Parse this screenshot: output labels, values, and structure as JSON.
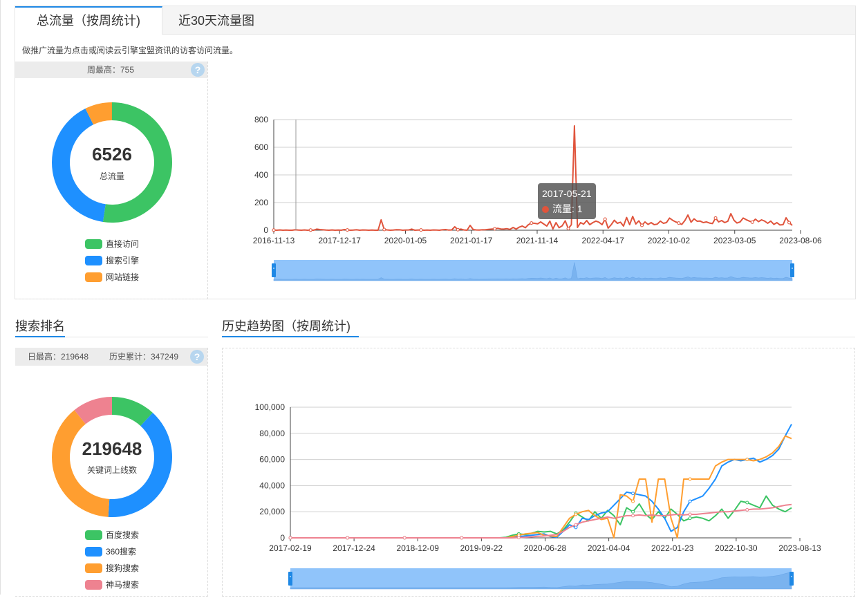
{
  "tabs": [
    {
      "label": "总流量（按周统计)",
      "active": true
    },
    {
      "label": "近30天流量图",
      "active": false
    }
  ],
  "description": "做推广流量为点击或阅读云引擎宝盟资讯的访客访问流量。",
  "traffic_stats": {
    "header": "周最高：755",
    "total_value": "6526",
    "total_label": "总流量",
    "legend": [
      {
        "label": "直接访问",
        "color": "#3cc464"
      },
      {
        "label": "搜索引擎",
        "color": "#1e90ff"
      },
      {
        "label": "网站链接",
        "color": "#ff9e30"
      }
    ]
  },
  "tooltip": {
    "date": "2017-05-21",
    "series": "流量",
    "value": "1"
  },
  "search_section_title": "搜索排名",
  "history_section_title": "历史趋势图（按周统计)",
  "search_stats": {
    "header_daily": "日最高：219648",
    "header_total": "历史累计：347249",
    "total_value": "219648",
    "total_label": "关键词上线数",
    "legend": [
      {
        "label": "百度搜索",
        "color": "#3cc464"
      },
      {
        "label": "360搜索",
        "color": "#1e90ff"
      },
      {
        "label": "搜狗搜索",
        "color": "#ff9e30"
      },
      {
        "label": "神马搜索",
        "color": "#ee8290"
      }
    ]
  },
  "icons": {
    "help": "?"
  },
  "chart_data": [
    {
      "type": "pie",
      "title": "",
      "center_value": 6526,
      "center_label": "总流量",
      "categories": [
        "直接访问",
        "搜索引擎",
        "网站链接"
      ],
      "values": [
        3420,
        2630,
        476
      ],
      "colors": [
        "#3cc464",
        "#1e90ff",
        "#ff9e30"
      ]
    },
    {
      "type": "line",
      "title": "",
      "xlabel": "",
      "ylabel": "",
      "ylim": [
        0,
        800
      ],
      "yticks": [
        0,
        200,
        400,
        600,
        800
      ],
      "x_tick_labels": [
        "2016-11-13",
        "2017-12-17",
        "2020-01-05",
        "2021-01-17",
        "2021-11-14",
        "2022-04-17",
        "2022-10-02",
        "2023-03-05",
        "2023-08-06"
      ],
      "grid": true,
      "legend": "none",
      "series": [
        {
          "color": "#e0543c",
          "values": [
            1,
            0,
            2,
            0,
            1,
            0,
            0,
            3,
            1,
            0,
            2,
            0,
            1,
            0,
            8,
            5,
            3,
            1,
            0,
            2,
            0,
            1,
            0,
            5,
            2,
            0,
            1,
            3,
            0,
            2,
            1,
            0,
            1,
            0,
            0,
            75,
            5,
            2,
            0,
            1,
            4,
            3,
            0,
            1,
            2,
            8,
            0,
            1,
            2,
            0,
            1,
            0,
            2,
            1,
            0,
            3,
            5,
            1,
            2,
            25,
            4,
            8,
            2,
            0,
            35,
            5,
            2,
            1,
            3,
            4,
            6,
            8,
            10,
            14,
            9,
            8,
            11,
            6,
            20,
            8,
            22,
            30,
            18,
            40,
            52,
            50,
            46,
            60,
            45,
            30,
            66,
            9,
            55,
            18,
            32,
            68,
            12,
            40,
            755,
            20,
            55,
            44,
            70,
            40,
            55,
            66,
            58,
            40,
            80,
            15,
            40,
            72,
            50,
            58,
            30,
            92,
            40,
            100,
            45,
            68,
            35,
            60,
            42,
            55,
            40,
            44,
            66,
            50,
            55,
            88,
            72,
            60,
            52,
            42,
            70,
            110,
            58,
            82,
            65,
            66,
            55,
            60,
            52,
            48,
            88,
            60,
            70,
            55,
            65,
            120,
            72,
            52,
            60,
            88,
            76,
            66,
            58,
            80,
            62,
            75,
            66,
            50,
            66,
            42,
            55,
            38,
            40,
            90,
            55,
            35
          ]
        }
      ]
    },
    {
      "type": "pie",
      "title": "",
      "center_value": 219648,
      "center_label": "关键词上线数",
      "categories": [
        "百度搜索",
        "360搜索",
        "搜狗搜索",
        "神马搜索"
      ],
      "values": [
        26000,
        86000,
        84000,
        23648
      ],
      "colors": [
        "#3cc464",
        "#1e90ff",
        "#ff9e30",
        "#ee8290"
      ]
    },
    {
      "type": "line",
      "title": "",
      "xlabel": "",
      "ylabel": "",
      "ylim": [
        0,
        100000
      ],
      "yticks": [
        0,
        20000,
        40000,
        60000,
        80000,
        100000
      ],
      "x_tick_labels": [
        "2017-02-19",
        "2017-12-24",
        "2018-12-09",
        "2019-09-22",
        "2020-06-28",
        "2021-04-04",
        "2022-01-23",
        "2022-10-30",
        "2023-08-13"
      ],
      "grid": true,
      "legend": "none",
      "series": [
        {
          "name": "百度搜索",
          "color": "#3cc464",
          "values": [
            0,
            0,
            0,
            0,
            0,
            0,
            0,
            0,
            0,
            0,
            0,
            0,
            0,
            0,
            0,
            0,
            0,
            0,
            0,
            0,
            0,
            0,
            0,
            0,
            0,
            0,
            0,
            0,
            0,
            0,
            0,
            0,
            0,
            0,
            500,
            2000,
            3000,
            2500,
            3500,
            5000,
            4500,
            5000,
            3000,
            6000,
            12000,
            19000,
            16000,
            13000,
            20000,
            15000,
            21000,
            17000,
            10000,
            23000,
            20000,
            26000,
            18000,
            14000,
            20000,
            15000,
            22000,
            18000,
            13000,
            15000,
            16000,
            15000,
            13000,
            17000,
            22000,
            15000,
            21000,
            28000,
            27000,
            25000,
            23000,
            32000,
            25000,
            22000,
            20000,
            23000
          ]
        },
        {
          "name": "360搜索",
          "color": "#1e90ff",
          "values": [
            0,
            0,
            0,
            0,
            0,
            0,
            0,
            0,
            0,
            0,
            0,
            0,
            0,
            0,
            0,
            0,
            0,
            0,
            0,
            0,
            0,
            0,
            0,
            0,
            0,
            0,
            0,
            0,
            0,
            0,
            0,
            0,
            0,
            0,
            0,
            500,
            1000,
            1500,
            2000,
            2500,
            3000,
            1000,
            500,
            5000,
            10000,
            8000,
            15000,
            14000,
            17000,
            19000,
            20000,
            25000,
            30000,
            35000,
            34000,
            33000,
            32000,
            28000,
            22000,
            15000,
            5000,
            8000,
            20000,
            28000,
            30000,
            32000,
            38000,
            45000,
            55000,
            58000,
            60000,
            59000,
            60000,
            61000,
            58000,
            60000,
            63000,
            68000,
            78000,
            87000
          ]
        },
        {
          "name": "搜狗搜索",
          "color": "#ff9e30",
          "values": [
            0,
            0,
            0,
            0,
            0,
            0,
            0,
            0,
            0,
            0,
            0,
            0,
            0,
            0,
            0,
            0,
            0,
            0,
            0,
            0,
            0,
            0,
            0,
            0,
            0,
            0,
            0,
            0,
            0,
            0,
            0,
            0,
            0,
            0,
            0,
            1000,
            2000,
            3000,
            3500,
            4000,
            2000,
            1500,
            1000,
            8000,
            15000,
            18000,
            20000,
            21000,
            17000,
            14000,
            15000,
            0,
            33000,
            32000,
            28000,
            45000,
            45000,
            12000,
            45000,
            45000,
            15000,
            0,
            45000,
            45000,
            45000,
            45000,
            45000,
            55000,
            58000,
            60000,
            60000,
            60000,
            60000,
            59000,
            60000,
            62000,
            65000,
            70000,
            78000,
            76000
          ]
        },
        {
          "name": "神马搜索",
          "color": "#ee8290",
          "values": [
            0,
            0,
            0,
            0,
            0,
            0,
            0,
            0,
            0,
            0,
            0,
            0,
            0,
            0,
            0,
            0,
            0,
            0,
            0,
            0,
            0,
            0,
            0,
            0,
            0,
            0,
            0,
            0,
            0,
            0,
            0,
            0,
            0,
            0,
            0,
            0,
            200,
            500,
            800,
            1200,
            1500,
            2000,
            2500,
            5000,
            8000,
            10000,
            12000,
            13000,
            14000,
            15000,
            16000,
            15000,
            16000,
            17000,
            17000,
            17500,
            17000,
            17500,
            17000,
            17000,
            17500,
            18000,
            17500,
            18000,
            18000,
            18500,
            19000,
            19500,
            20000,
            20000,
            20500,
            21000,
            21500,
            22000,
            22000,
            22500,
            23000,
            24000,
            25000,
            25500
          ]
        }
      ]
    }
  ]
}
